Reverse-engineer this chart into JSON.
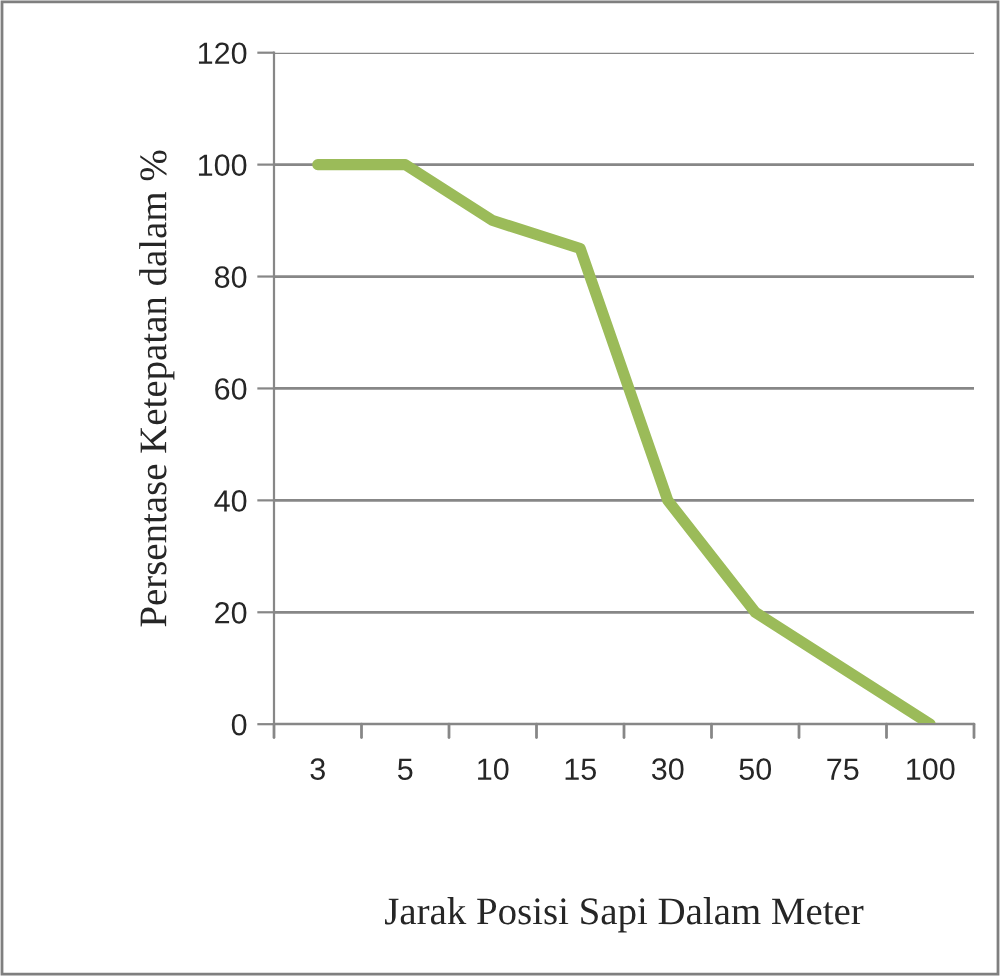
{
  "chart_data": {
    "type": "line",
    "xlabel": "Jarak Posisi Sapi Dalam Meter",
    "ylabel": "Persentase Ketepatan dalam %",
    "categories": [
      "3",
      "5",
      "10",
      "15",
      "30",
      "50",
      "75",
      "100"
    ],
    "series": [
      {
        "color": "#9bbb59",
        "values": [
          100,
          100,
          90,
          85,
          40,
          20,
          10,
          0
        ]
      }
    ],
    "ylim": [
      0,
      120
    ],
    "yticks": [
      0,
      20,
      40,
      60,
      80,
      100,
      120
    ],
    "grid": "y",
    "marker": "none",
    "line_style": "solid"
  }
}
